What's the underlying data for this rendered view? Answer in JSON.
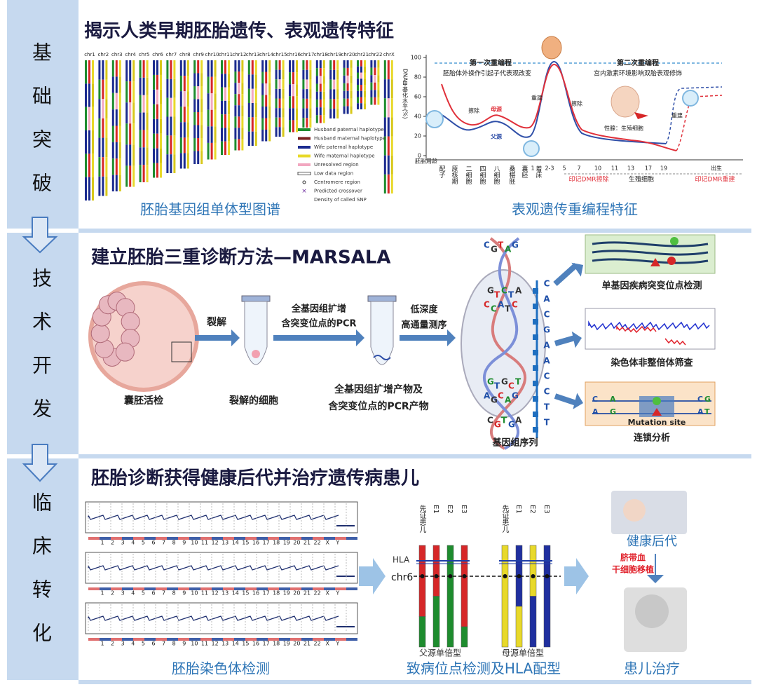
{
  "sidebar": {
    "stages": [
      "基础突破",
      "技术开发",
      "临床转化"
    ]
  },
  "section1": {
    "title": "揭示人类早期胚胎遗传、表观遗传特征",
    "haplotype_map": {
      "chromosomes": [
        "chr1",
        "chr2",
        "chr3",
        "chr4",
        "chr5",
        "chr6",
        "chr7",
        "chr8",
        "chr9",
        "chr10",
        "chr11",
        "chr12",
        "chr13",
        "chr14",
        "chr15",
        "chr16",
        "chr17",
        "chr18",
        "chr19",
        "chr20",
        "chr21",
        "chr22",
        "chrX"
      ],
      "legend": [
        "Husband paternal haplotype",
        "Husband maternal haplotype",
        "Wife paternal haplotype",
        "Wife maternal haplotype",
        "Unresolved region",
        "Low data region",
        "Centromere region",
        "Predicted crossover",
        "Density of called SNP"
      ],
      "caption": "胚胎基因组单体型图谱"
    },
    "methylation": {
      "y_label": "DNA甲基化水平(%)",
      "yticks": [
        0,
        20,
        40,
        60,
        80,
        100
      ],
      "phase1": {
        "title": "第一次重编程",
        "note": "胚胎体外操作引起子代表观改变"
      },
      "phase2": {
        "title": "第二次重编程",
        "note": "宫内激素环境影响双胎表观修饰"
      },
      "annotations": {
        "erase1": "擦除",
        "maternal": "母源",
        "paternal": "父源",
        "rebuild1": "重建",
        "erase2": "擦除",
        "gonad": "性腺：生殖细胞",
        "rebuild2": "重建"
      },
      "x_label": "胚胎周龄",
      "stages": [
        "配子",
        "原核期",
        "二细胞",
        "四细胞",
        "八细胞",
        "桑椹胚",
        "囊胚",
        "着床"
      ],
      "weeks": [
        "1",
        "2-3",
        "5",
        "7",
        "10",
        "11",
        "13",
        "17",
        "19",
        "出生"
      ],
      "periods": [
        "印记DMR擦除",
        "生殖细胞",
        "印记DMR重建"
      ],
      "caption": "表观遗传重编程特征"
    }
  },
  "section2": {
    "title": "建立胚胎三重诊断方法—MARSALA",
    "steps": {
      "lysis": "裂解",
      "amplify": [
        "全基因组扩增",
        "含突变位点的PCR"
      ],
      "sequence": [
        "低深度",
        "高通量测序"
      ]
    },
    "labels": {
      "biopsy": "囊胚活检",
      "lysed": "裂解的细胞",
      "product": [
        "全基因组扩增产物及",
        "含突变位点的PCR产物"
      ],
      "genome": "基因组序列"
    },
    "helix_letters": [
      "C",
      "G",
      "T",
      "A",
      "G",
      "G",
      "T",
      "C",
      "T",
      "A",
      "C",
      "C",
      "A",
      "T",
      "C",
      "G",
      "T",
      "G",
      "C",
      "T",
      "A",
      "G",
      "C",
      "A",
      "G",
      "C",
      "G",
      "T",
      "G",
      "A"
    ],
    "sequence_strip": [
      "C",
      "A",
      "C",
      "G",
      "A",
      "A",
      "C",
      "C",
      "T",
      "T"
    ],
    "outputs": [
      "单基因疾病突变位点检测",
      "染色体非整倍体筛查",
      "连锁分析"
    ],
    "mutation_site": "Mutation site",
    "linkage_letters": [
      "C",
      "A",
      "C",
      "G",
      "A",
      "G",
      "A",
      "T"
    ]
  },
  "section3": {
    "title": "胚胎诊断获得健康后代并治疗遗传病患儿",
    "karyotype_labels": [
      "1",
      "2",
      "3",
      "4",
      "5",
      "6",
      "7",
      "8",
      "9",
      "10",
      "11",
      "12",
      "13",
      "14",
      "15",
      "16",
      "17",
      "18",
      "19",
      "20",
      "21",
      "22",
      "X",
      "Y"
    ],
    "hla": {
      "columns": [
        "先证患儿",
        "E1",
        "E2",
        "E3"
      ],
      "hla_label": "HLA",
      "chr_label": "chr6",
      "paternal": "父源单倍型",
      "maternal": "母源单倍型"
    },
    "treatment": {
      "healthy": "健康后代",
      "cord_blood": "脐带血",
      "transplant": "干细胞移植"
    },
    "captions": [
      "胚胎染色体检测",
      "致病位点检测及HLA配型",
      "患儿治疗"
    ]
  }
}
